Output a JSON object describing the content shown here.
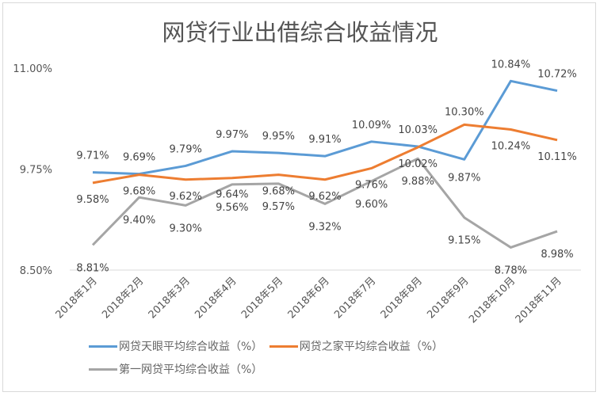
{
  "chart_data": {
    "type": "line",
    "title": "网贷行业出借综合收益情况",
    "categories": [
      "2018年1月",
      "2018年2月",
      "2018年3月",
      "2018年4月",
      "2018年5月",
      "2018年6月",
      "2018年7月",
      "2018年8月",
      "2018年9月",
      "2018年10月",
      "2018年11月"
    ],
    "yticks": [
      "8.50%",
      "9.75%",
      "11.00%"
    ],
    "ylim": [
      8.5,
      11.0
    ],
    "grid": false,
    "legend_position": "bottom",
    "series": [
      {
        "name": "网贷天眼平均综合收益（%）",
        "color": "#5b9bd5",
        "values": [
          9.71,
          9.69,
          9.79,
          9.97,
          9.95,
          9.91,
          10.09,
          10.03,
          9.87,
          10.84,
          10.72
        ]
      },
      {
        "name": "网贷之家平均综合收益（%）",
        "color": "#ed7d31",
        "values": [
          9.58,
          9.68,
          9.62,
          9.64,
          9.68,
          9.62,
          9.76,
          10.02,
          10.3,
          10.24,
          10.11
        ]
      },
      {
        "name": "第一网贷平均综合收益（%）",
        "color": "#a5a5a5",
        "values": [
          8.81,
          9.4,
          9.3,
          9.56,
          9.57,
          9.32,
          9.6,
          9.88,
          9.15,
          8.78,
          8.98
        ]
      }
    ]
  }
}
